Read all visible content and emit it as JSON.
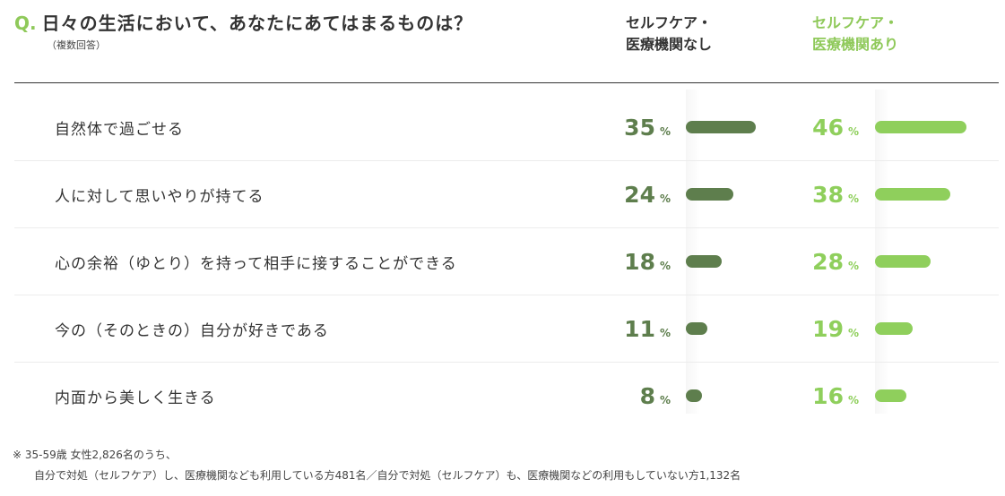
{
  "question": {
    "mark": "Q.",
    "text": "日々の生活において、あなたにあてはまるものは？",
    "sub": "（複数回答）"
  },
  "columns": [
    {
      "label": "セルフケア・\n医療機関なし",
      "color": "#5e7e4d"
    },
    {
      "label": "セルフケア・\n医療機関あり",
      "color": "#8fcf5c"
    }
  ],
  "chart_data": {
    "type": "bar",
    "orientation": "horizontal",
    "unit": "%",
    "categories": [
      "自然体で過ごせる",
      "人に対して思いやりが持てる",
      "心の余裕（ゆとり）を持って相手に接することができる",
      "今の（そのときの）自分が好きである",
      "内面から美しく生きる"
    ],
    "series": [
      {
        "name": "セルフケア・医療機関なし",
        "values": [
          35,
          24,
          18,
          11,
          8
        ],
        "color": "#5e7e4d"
      },
      {
        "name": "セルフケア・医療機関あり",
        "values": [
          46,
          38,
          28,
          19,
          16
        ],
        "color": "#8fcf5c"
      }
    ],
    "xlim": [
      0,
      46
    ]
  },
  "footnote": {
    "line1": "※  35-59歳 女性2,826名のうち、",
    "line2": "自分で対処（セルフケア）し、医療機関なども利用している方481名／自分で対処（セルフケア）も、医療機関などの利用もしていない方1,132名"
  }
}
